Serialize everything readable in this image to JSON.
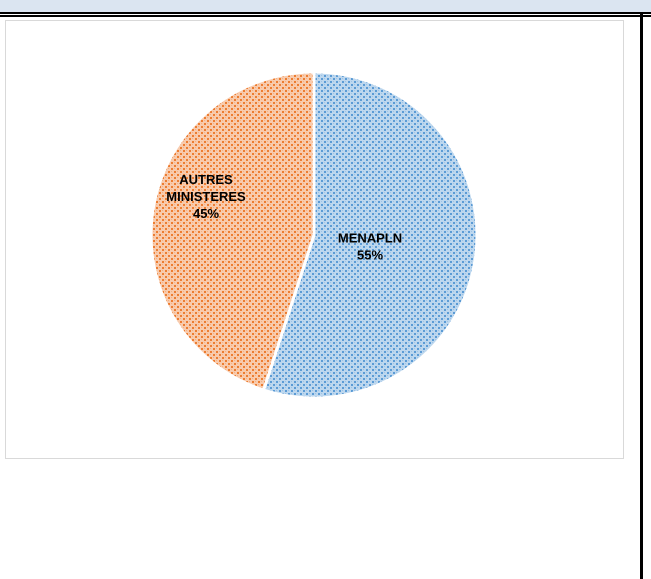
{
  "chart_data": {
    "type": "pie",
    "title": "",
    "legend": "none",
    "slices": [
      {
        "label_lines": [
          "MENAPLN"
        ],
        "percent_label": "55%",
        "value": 55,
        "color": "#5b9bd5"
      },
      {
        "label_lines": [
          "AUTRES",
          "MINISTERES"
        ],
        "percent_label": "45%",
        "value": 45,
        "color": "#ed7d31"
      }
    ]
  }
}
